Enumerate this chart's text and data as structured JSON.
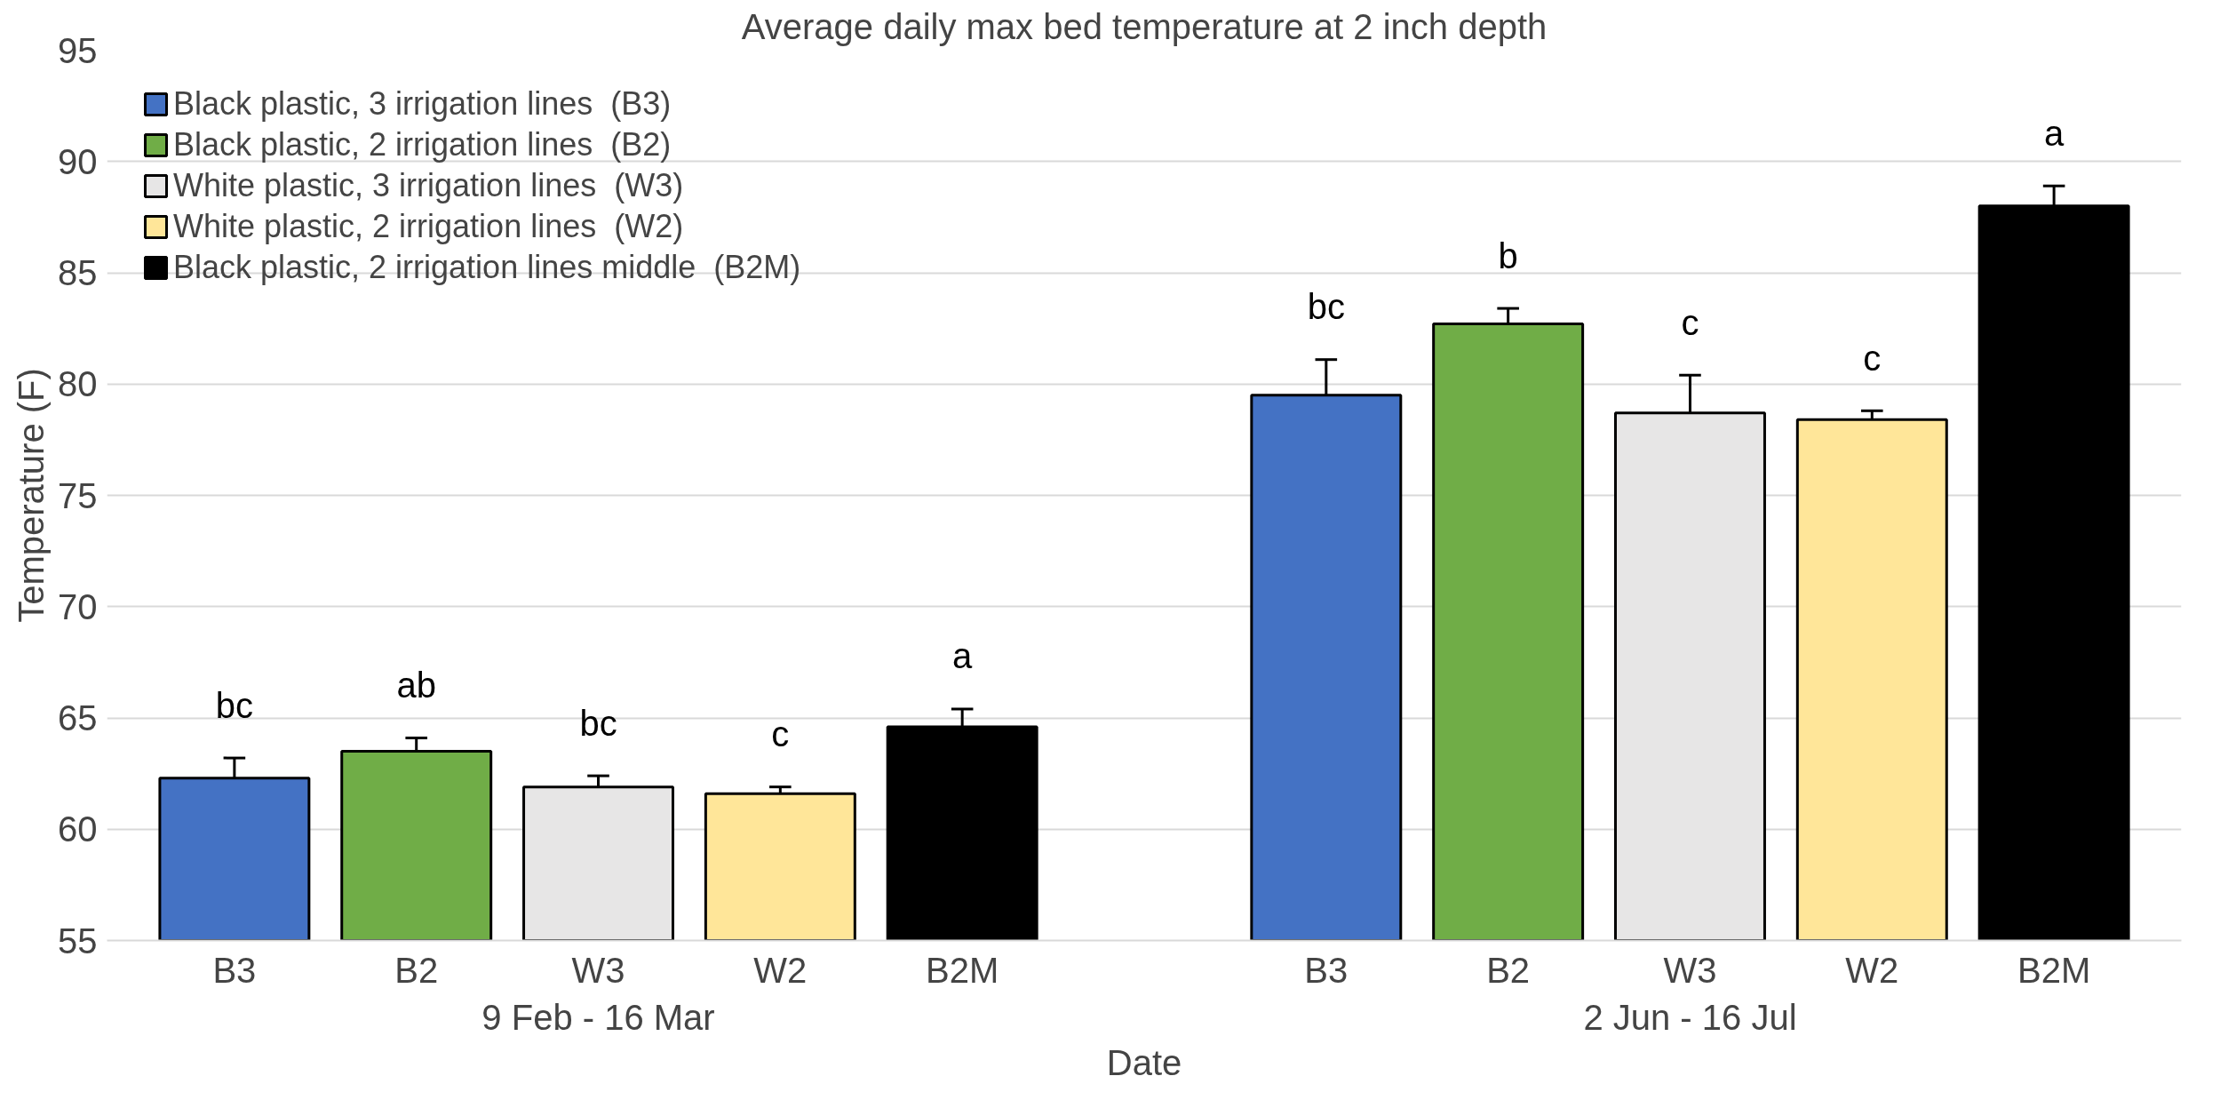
{
  "chart_data": {
    "type": "bar",
    "title": "Average daily max bed temperature at 2 inch depth",
    "xlabel": "Date",
    "ylabel": "Temperature (F)",
    "categories": [
      "B3",
      "B2",
      "W3",
      "W2",
      "B2M",
      "B3",
      "B2",
      "W3",
      "W2",
      "B2M"
    ],
    "series": [
      {
        "name": "Black plastic, 3 irrigation lines  (B3)",
        "color": "#4472c4",
        "values": [
          62.3,
          null,
          null,
          null,
          null,
          79.5,
          null,
          null,
          null,
          null
        ],
        "errors": [
          [
            62.3,
            63.2
          ],
          null,
          null,
          null,
          null,
          [
            79.5,
            81.1
          ],
          null,
          null,
          null,
          null
        ],
        "value_labels": [
          "bc",
          null,
          null,
          null,
          null,
          "bc",
          null,
          null,
          null,
          null
        ]
      },
      {
        "name": "Black plastic, 2 irrigation lines  (B2)",
        "color": "#70ad47",
        "values": [
          null,
          63.5,
          null,
          null,
          null,
          null,
          82.7,
          null,
          null,
          null
        ],
        "errors": [
          null,
          [
            63.5,
            64.1
          ],
          null,
          null,
          null,
          null,
          [
            82.7,
            83.4
          ],
          null,
          null,
          null
        ],
        "value_labels": [
          null,
          "ab",
          null,
          null,
          null,
          null,
          "b",
          null,
          null,
          null
        ]
      },
      {
        "name": "White plastic, 3 irrigation lines  (W3)",
        "color": "#e7e6e6",
        "values": [
          null,
          null,
          61.9,
          null,
          null,
          null,
          null,
          78.7,
          null,
          null
        ],
        "errors": [
          null,
          null,
          [
            61.9,
            62.4
          ],
          null,
          null,
          null,
          null,
          [
            78.7,
            80.4
          ],
          null,
          null
        ],
        "value_labels": [
          null,
          null,
          "bc",
          null,
          null,
          null,
          null,
          "c",
          null,
          null
        ]
      },
      {
        "name": "White plastic, 2 irrigation lines  (W2)",
        "color": "#ffe699",
        "values": [
          null,
          null,
          null,
          61.6,
          null,
          null,
          null,
          null,
          78.4,
          null
        ],
        "errors": [
          null,
          null,
          null,
          [
            61.6,
            61.9
          ],
          null,
          null,
          null,
          null,
          [
            78.4,
            78.8
          ],
          null
        ],
        "value_labels": [
          null,
          null,
          null,
          "c",
          null,
          null,
          null,
          null,
          "c",
          null
        ]
      },
      {
        "name": "Black plastic, 2 irrigation lines middle  (B2M)",
        "color": "#000000",
        "values": [
          null,
          null,
          null,
          null,
          64.6,
          null,
          null,
          null,
          null,
          88.0
        ],
        "errors": [
          null,
          null,
          null,
          null,
          [
            64.6,
            65.4
          ],
          null,
          null,
          null,
          null,
          [
            88.0,
            88.9
          ]
        ],
        "value_labels": [
          null,
          null,
          null,
          null,
          "a",
          null,
          null,
          null,
          null,
          "a"
        ]
      }
    ],
    "annotations": [
      "9 Feb - 16 Mar",
      "2 Jun - 16 Jul"
    ],
    "ylim": [
      55,
      95
    ],
    "yticks": [
      55,
      60,
      65,
      70,
      75,
      80,
      85,
      90,
      95
    ],
    "grid": "y",
    "legend": "top left"
  }
}
